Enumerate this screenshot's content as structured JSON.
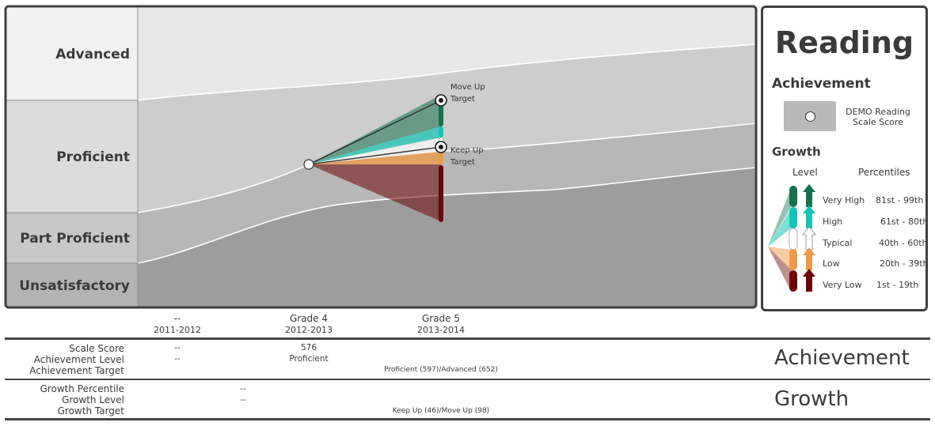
{
  "chart_data": {
    "type": "area",
    "subject": "Reading",
    "levels": [
      {
        "name": "Advanced",
        "fill": "#e8e8e8"
      },
      {
        "name": "Proficient",
        "fill": "#cdcdcd"
      },
      {
        "name": "Part Proficient",
        "fill": "#b7b7b7"
      },
      {
        "name": "Unsatisfactory",
        "fill": "#9d9d9d"
      }
    ],
    "level_label_fills": [
      "#f1f1f1",
      "#dcdcdc",
      "#c8c8c8",
      "#b3b3b3"
    ],
    "years": [
      {
        "grade": "--",
        "year": "2011-2012"
      },
      {
        "grade": "Grade 4",
        "year": "2012-2013"
      },
      {
        "grade": "Grade 5",
        "year": "2013-2014"
      }
    ],
    "current_score": {
      "year_index": 1,
      "value": 576,
      "level": "Proficient"
    },
    "targets": [
      {
        "name": "Move Up",
        "label_lines": [
          "Move Up",
          "Target"
        ],
        "value": 652
      },
      {
        "name": "Keep Up",
        "label_lines": [
          "Keep Up",
          "Target"
        ],
        "value": 597
      }
    ],
    "growth_fan_colors": {
      "very_high": "#17714f",
      "high": "#12c4b3",
      "typical": "#ffffff",
      "low": "#f19a45",
      "very_low": "#6d0606"
    }
  },
  "table": {
    "achievement_rows": [
      {
        "label": "Scale Score",
        "values": [
          "--",
          "576",
          ""
        ]
      },
      {
        "label": "Achievement Level",
        "values": [
          "--",
          "Proficient",
          ""
        ]
      },
      {
        "label": "Achievement Target",
        "values": [
          "",
          "",
          "Proficient (597)/Advanced (652)"
        ]
      }
    ],
    "growth_rows": [
      {
        "label": "Growth Percentile",
        "values": [
          "--"
        ]
      },
      {
        "label": "Growth Level",
        "values": [
          "--"
        ]
      },
      {
        "label": "Growth Target",
        "values": [
          "Keep Up (46)/Move Up (98)"
        ]
      }
    ],
    "achievement_title": "Achievement",
    "growth_title": "Growth"
  },
  "legend": {
    "title": "Reading",
    "achievement_heading": "Achievement",
    "score_label_line1": "DEMO Reading",
    "score_label_line2": "Scale Score",
    "growth_heading": "Growth",
    "col_level": "Level",
    "col_percentiles": "Percentiles",
    "growth_levels": [
      {
        "name": "Very High",
        "range": "81st  - 99th",
        "color": "#17714f"
      },
      {
        "name": "High",
        "range": "61st - 80th",
        "color": "#12c4b3"
      },
      {
        "name": "Typical",
        "range": "40th - 60th",
        "color": "#ffffff"
      },
      {
        "name": "Low",
        "range": "20th - 39th",
        "color": "#f19a45"
      },
      {
        "name": "Very Low",
        "range": "1st - 19th",
        "color": "#6d0606"
      }
    ]
  }
}
